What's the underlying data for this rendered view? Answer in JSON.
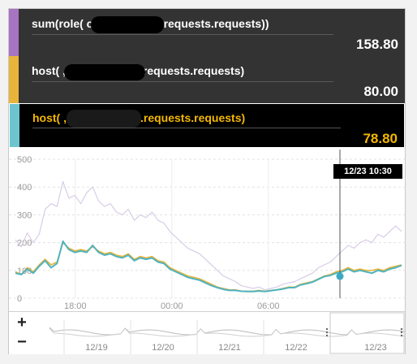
{
  "tooltip": {
    "rows": [
      {
        "name": "sum(role(        custom.nginx.requests.requests))",
        "value": "158.80",
        "color": "#a774c2"
      },
      {
        "name": "host(         ,custom.nginx.requests.requests)",
        "value": "80.00",
        "color": "#e8b43a"
      },
      {
        "name": "host(           ,custom.nginx.requests.requests)",
        "value": "78.80",
        "color": "#6cc4cf"
      }
    ]
  },
  "chart_data": {
    "type": "line",
    "x_ticks": [
      "18:00",
      "00:00",
      "06:00"
    ],
    "y_ticks": [
      0,
      100,
      200,
      300,
      400,
      500
    ],
    "ylim": [
      0,
      500
    ],
    "crosshair_label": "12/23 10:30",
    "series": [
      {
        "name": "sum(role(        custom.nginx.requests.requests))",
        "color": "#d8cde6",
        "values": [
          210,
          185,
          235,
          200,
          230,
          320,
          340,
          330,
          420,
          360,
          370,
          340,
          380,
          400,
          350,
          330,
          340,
          310,
          300,
          320,
          280,
          300,
          290,
          310,
          280,
          270,
          240,
          220,
          200,
          180,
          170,
          160,
          140,
          120,
          100,
          80,
          70,
          60,
          45,
          40,
          35,
          40,
          30,
          35,
          40,
          50,
          55,
          60,
          70,
          80,
          90,
          110,
          120,
          130,
          150,
          170,
          190,
          180,
          200,
          210,
          200,
          230,
          220,
          240,
          260,
          240
        ]
      },
      {
        "name": "host(         ,custom.nginx.requests.requests)",
        "color": "#e8b43a",
        "values": [
          95,
          85,
          110,
          95,
          120,
          140,
          120,
          130,
          200,
          180,
          170,
          175,
          170,
          185,
          170,
          160,
          165,
          155,
          150,
          160,
          140,
          150,
          145,
          150,
          135,
          130,
          110,
          100,
          90,
          80,
          75,
          70,
          60,
          50,
          40,
          35,
          30,
          30,
          25,
          25,
          25,
          28,
          25,
          28,
          30,
          35,
          40,
          40,
          50,
          55,
          60,
          70,
          80,
          85,
          95,
          100,
          110,
          100,
          105,
          100,
          100,
          105,
          100,
          110,
          115,
          120
        ]
      },
      {
        "name": "host(           ,custom.nginx.requests.requests)",
        "color": "#4fb3bf",
        "values": [
          90,
          85,
          105,
          90,
          115,
          135,
          110,
          125,
          205,
          175,
          165,
          170,
          165,
          190,
          165,
          155,
          160,
          150,
          145,
          155,
          135,
          145,
          140,
          145,
          130,
          125,
          105,
          95,
          85,
          75,
          70,
          65,
          55,
          45,
          38,
          32,
          28,
          28,
          25,
          24,
          24,
          26,
          24,
          27,
          30,
          33,
          38,
          38,
          48,
          52,
          58,
          68,
          78,
          82,
          90,
          95,
          105,
          95,
          100,
          95,
          90,
          100,
          95,
          105,
          110,
          118
        ]
      }
    ]
  },
  "navigator": {
    "labels": [
      "12/19",
      "12/20",
      "12/21",
      "12/22",
      "12/23"
    ],
    "zoom_in": "+",
    "zoom_out": "−"
  }
}
